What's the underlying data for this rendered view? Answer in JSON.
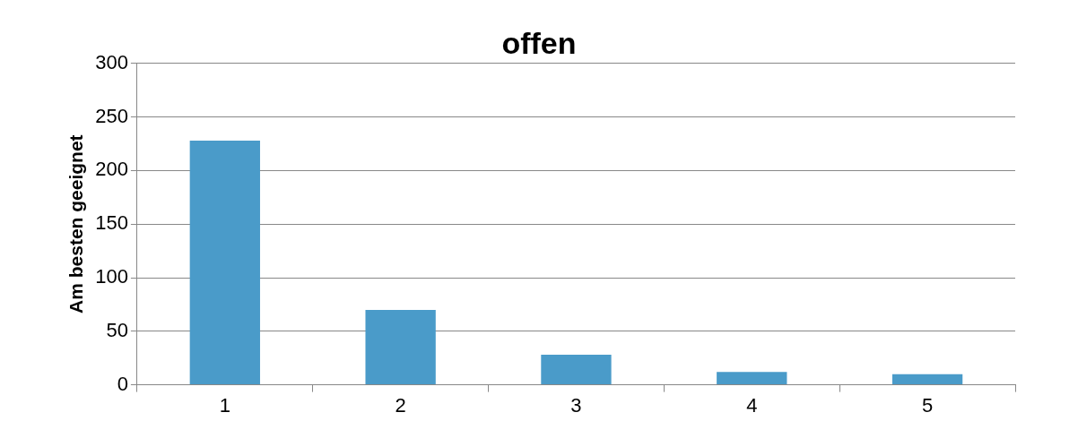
{
  "chart_data": {
    "type": "bar",
    "title": "offen",
    "ylabel": "Am besten geeignet",
    "categories": [
      "1",
      "2",
      "3",
      "4",
      "5"
    ],
    "values": [
      228,
      70,
      28,
      12,
      10
    ],
    "color": "#4a9bc9",
    "ylim": [
      0,
      300
    ],
    "yticks": [
      0,
      50,
      100,
      150,
      200,
      250,
      300
    ],
    "grid": "y",
    "legend": false
  }
}
